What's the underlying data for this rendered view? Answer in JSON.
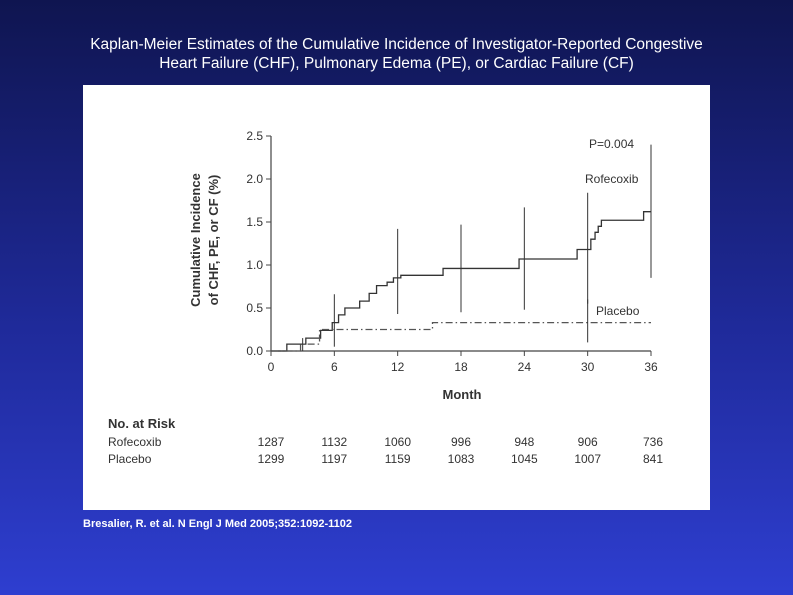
{
  "slide": {
    "title_line1": "Kaplan-Meier Estimates of the Cumulative Incidence of Investigator-Reported Congestive",
    "title_line2": "Heart Failure (CHF), Pulmonary Edema (PE), or Cardiac Failure (CF)",
    "citation": "Bresalier, R. et al. N Engl J Med 2005;352:1092-1102"
  },
  "chart_data": {
    "type": "line",
    "title": "",
    "xlabel": "Month",
    "ylabel_line1": "Cumulative Incidence",
    "ylabel_line2": "of CHF, PE, or CF (%)",
    "xlim": [
      0,
      36
    ],
    "ylim": [
      0,
      2.5
    ],
    "xticks": [
      0,
      6,
      12,
      18,
      24,
      30,
      36
    ],
    "yticks": [
      0.0,
      0.5,
      1.0,
      1.5,
      2.0,
      2.5
    ],
    "ytick_labels": [
      "0.0",
      "0.5",
      "1.0",
      "1.5",
      "2.0",
      "2.5"
    ],
    "grid": false,
    "p_value": "P=0.004",
    "series": [
      {
        "name": "Rofecoxib",
        "style": "solid",
        "color": "#333333",
        "steps": [
          [
            0,
            0
          ],
          [
            1.5,
            0.08
          ],
          [
            3.3,
            0.15
          ],
          [
            4.7,
            0.24
          ],
          [
            5.8,
            0.33
          ],
          [
            6.4,
            0.42
          ],
          [
            7,
            0.5
          ],
          [
            8.4,
            0.58
          ],
          [
            9.3,
            0.67
          ],
          [
            10,
            0.76
          ],
          [
            11,
            0.8
          ],
          [
            11.6,
            0.85
          ],
          [
            12.3,
            0.88
          ],
          [
            16.3,
            0.96
          ],
          [
            23.5,
            1.07
          ],
          [
            29,
            1.18
          ],
          [
            30.3,
            1.3
          ],
          [
            30.7,
            1.38
          ],
          [
            31,
            1.45
          ],
          [
            31.3,
            1.52
          ],
          [
            35.3,
            1.62
          ],
          [
            36,
            1.62
          ]
        ],
        "ci_bars": [
          {
            "x": 6,
            "low": 0.05,
            "high": 0.66
          },
          {
            "x": 12,
            "low": 0.43,
            "high": 1.42
          },
          {
            "x": 18,
            "low": 0.45,
            "high": 1.47
          },
          {
            "x": 24,
            "low": 0.48,
            "high": 1.67
          },
          {
            "x": 30,
            "low": 0.55,
            "high": 1.84
          },
          {
            "x": 36,
            "low": 0.85,
            "high": 2.4
          }
        ]
      },
      {
        "name": "Placebo",
        "style": "dash-dot",
        "color": "#555555",
        "steps": [
          [
            0,
            0
          ],
          [
            2.8,
            0.08
          ],
          [
            4.6,
            0.25
          ],
          [
            15.3,
            0.33
          ],
          [
            36,
            0.33
          ]
        ],
        "ci_bars": [
          {
            "x": 3,
            "low": 0.0,
            "high": 0.15
          },
          {
            "x": 30,
            "low": 0.1,
            "high": 0.6
          }
        ]
      }
    ],
    "risk_table": {
      "heading": "No. at Risk",
      "rows": [
        {
          "label": "Rofecoxib",
          "values": [
            "1287",
            "1132",
            "1060",
            "996",
            "948",
            "906",
            "736"
          ]
        },
        {
          "label": "Placebo",
          "values": [
            "1299",
            "1197",
            "1159",
            "1083",
            "1045",
            "1007",
            "841"
          ]
        }
      ]
    }
  }
}
